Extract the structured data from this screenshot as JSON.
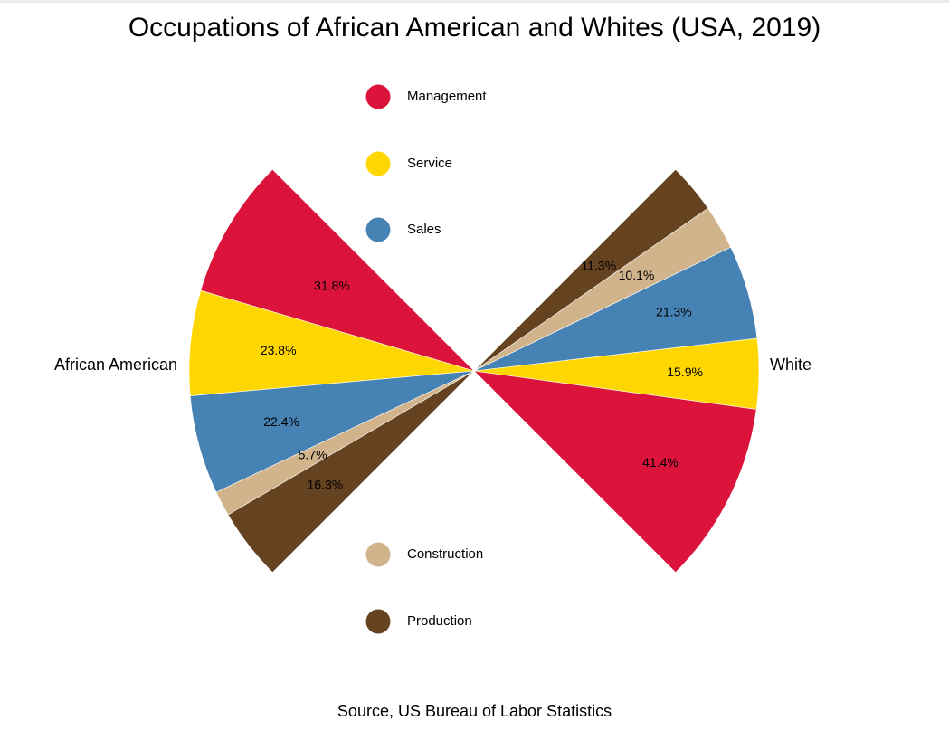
{
  "chart_data": {
    "type": "pie",
    "title": "Occupations of African American and Whites (USA, 2019)",
    "source": "Source, US Bureau of Labor Statistics",
    "legend_placement": "center",
    "categories": [
      "Management",
      "Service",
      "Sales",
      "Construction",
      "Production"
    ],
    "colors": {
      "Management": "#DC143C",
      "Service": "#FFD700",
      "Sales": "#4682B4",
      "Construction": "#D2B48C",
      "Production": "#654321"
    },
    "series": [
      {
        "name": "African American",
        "values": [
          31.8,
          23.8,
          22.4,
          5.7,
          16.3
        ],
        "labels": [
          "31.8%",
          "23.8%",
          "22.4%",
          "5.7%",
          "16.3%"
        ]
      },
      {
        "name": "White",
        "values": [
          41.4,
          15.9,
          21.3,
          10.1,
          11.3
        ],
        "labels": [
          "41.4%",
          "15.9%",
          "21.3%",
          "10.1%",
          "11.3%"
        ]
      }
    ]
  }
}
